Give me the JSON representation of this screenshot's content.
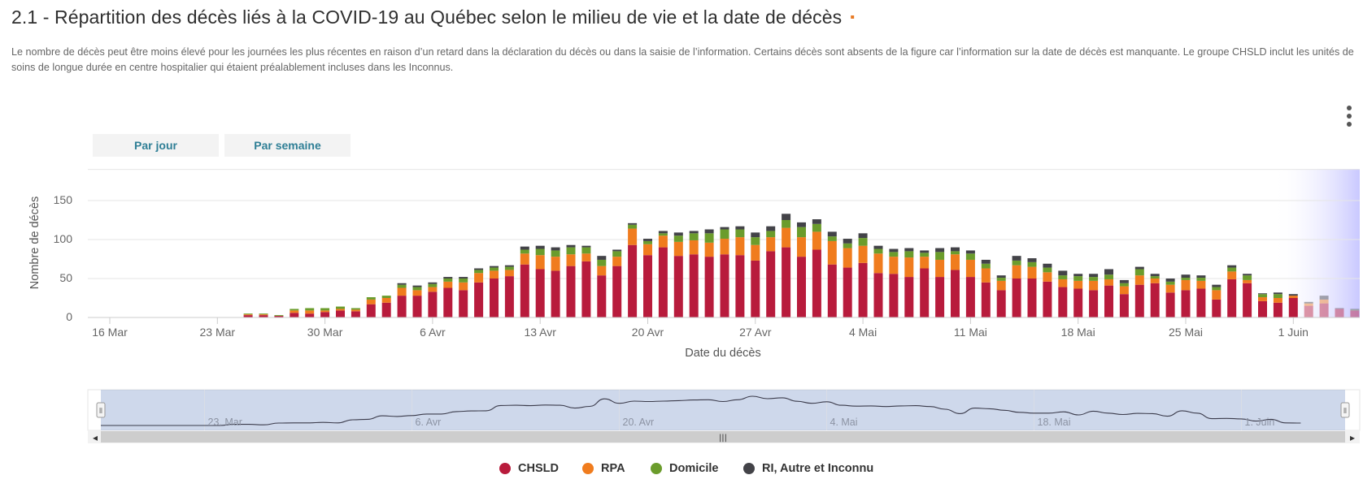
{
  "header": {
    "title": "2.1 - Répartition des décès liés à la COVID-19 au Québec selon le milieu de vie et la date de décès",
    "title_marker": "▪",
    "description": "Le nombre de décès peut être moins élevé pour les journées les plus récentes en raison d’un retard dans la déclaration du décès ou dans la saisie de l’information. Certains décès sont absents de la figure car l’information sur la date de décès est manquante. Le groupe CHSLD inclut les unités de soins de longue durée en centre hospitalier qui étaient préalablement incluses dans les Inconnus."
  },
  "buttons": {
    "day": "Par jour",
    "week": "Par semaine"
  },
  "menu": {
    "icon": "vertical-ellipsis-icon"
  },
  "navigator": {
    "labels": [
      "23. Mar",
      "6. Avr",
      "20. Avr",
      "4. Mai",
      "18. Mai",
      "1. Juin"
    ],
    "scroll_grip": "|||",
    "left_arrow": "◂",
    "right_arrow": "▸",
    "handle_glyph": "⦀"
  },
  "chart_data": {
    "type": "bar",
    "stacked": true,
    "title": "2.1 - Répartition des décès liés à la COVID-19 au Québec selon le milieu de vie et la date de décès",
    "xlabel": "Date du décès",
    "ylabel": "Nombre de décès",
    "ylim": [
      0,
      190
    ],
    "yticks": [
      0,
      50,
      100,
      150
    ],
    "x_start_label": "16 Mar",
    "xtick_labels": [
      "16 Mar",
      "23 Mar",
      "30 Mar",
      "6 Avr",
      "13 Avr",
      "20 Avr",
      "27 Avr",
      "4 Mai",
      "11 Mai",
      "18 Mai",
      "25 Mai",
      "1 Juin"
    ],
    "xtick_day_index": [
      0,
      7,
      14,
      21,
      28,
      35,
      42,
      49,
      56,
      63,
      70,
      77
    ],
    "first_bar_day_index": 9,
    "faded_from_day_index": 78,
    "grid": true,
    "legend_position": "bottom",
    "series": [
      {
        "name": "CHSLD",
        "color": "#b81b3c",
        "values": [
          3,
          3,
          2,
          6,
          5,
          7,
          9,
          8,
          17,
          19,
          28,
          28,
          33,
          38,
          35,
          45,
          50,
          53,
          68,
          62,
          60,
          66,
          72,
          54,
          66,
          93,
          80,
          90,
          79,
          81,
          78,
          81,
          80,
          73,
          85,
          90,
          78,
          87,
          68,
          64,
          70,
          57,
          56,
          52,
          63,
          52,
          61,
          52,
          45,
          35,
          50,
          50,
          46,
          39,
          37,
          35,
          41,
          30,
          42,
          44,
          32,
          35,
          37,
          23,
          49,
          44,
          21,
          19,
          25,
          15,
          18,
          11,
          9
        ]
      },
      {
        "name": "RPA",
        "color": "#f07c1e",
        "values": [
          1,
          1,
          0,
          3,
          4,
          2,
          2,
          2,
          6,
          6,
          10,
          7,
          6,
          8,
          10,
          12,
          10,
          8,
          14,
          18,
          18,
          15,
          10,
          12,
          12,
          21,
          14,
          15,
          18,
          18,
          18,
          20,
          23,
          20,
          18,
          25,
          25,
          23,
          30,
          25,
          22,
          25,
          22,
          25,
          15,
          22,
          20,
          22,
          18,
          12,
          17,
          15,
          12,
          10,
          10,
          12,
          8,
          10,
          12,
          6,
          10,
          13,
          10,
          12,
          10,
          4,
          5,
          6,
          3,
          3,
          5,
          0,
          0
        ]
      },
      {
        "name": "Domicile",
        "color": "#6b9c2c",
        "values": [
          1,
          1,
          1,
          2,
          3,
          3,
          3,
          2,
          3,
          3,
          4,
          4,
          4,
          4,
          5,
          4,
          4,
          4,
          5,
          8,
          8,
          9,
          8,
          8,
          7,
          5,
          4,
          3,
          8,
          9,
          12,
          12,
          10,
          10,
          8,
          10,
          13,
          10,
          6,
          6,
          10,
          6,
          6,
          8,
          5,
          10,
          4,
          8,
          6,
          4,
          6,
          6,
          6,
          5,
          6,
          5,
          6,
          4,
          8,
          3,
          4,
          3,
          4,
          4,
          5,
          6,
          4,
          5,
          0,
          0,
          0,
          0,
          1
        ]
      },
      {
        "name": "RI, Autre et Inconnu",
        "color": "#434348",
        "values": [
          0,
          0,
          0,
          0,
          0,
          0,
          0,
          0,
          0,
          0,
          2,
          2,
          2,
          2,
          2,
          2,
          2,
          2,
          4,
          4,
          4,
          3,
          2,
          5,
          2,
          2,
          3,
          3,
          4,
          3,
          5,
          3,
          4,
          6,
          6,
          8,
          6,
          6,
          6,
          6,
          6,
          4,
          4,
          4,
          3,
          5,
          5,
          4,
          5,
          3,
          6,
          5,
          5,
          6,
          3,
          4,
          7,
          4,
          3,
          3,
          4,
          4,
          3,
          3,
          3,
          2,
          1,
          2,
          2,
          2,
          5,
          1,
          1
        ]
      }
    ]
  }
}
